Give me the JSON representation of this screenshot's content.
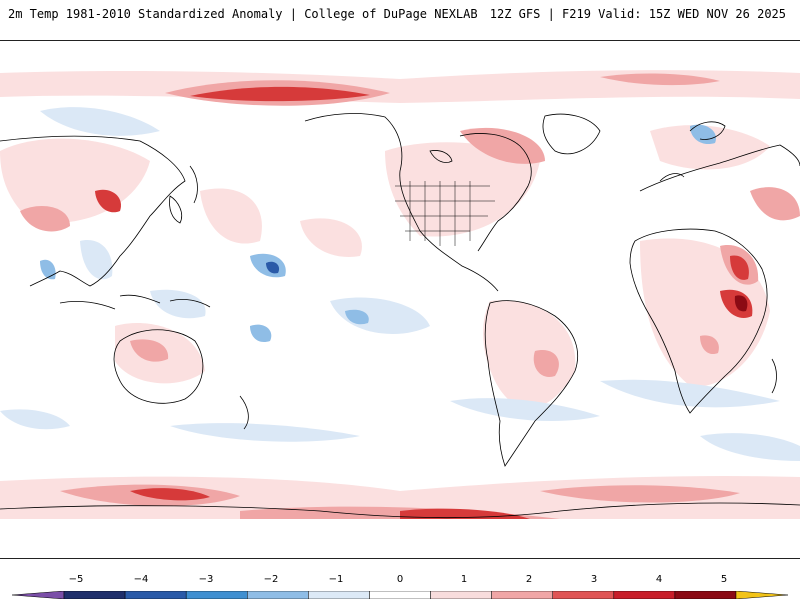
{
  "header": {
    "left_title": "2m Temp 1981-2010 Standardized Anomaly | College of DuPage NEXLAB",
    "right_title": "12Z GFS | F219 Valid: 15Z WED NOV 26 2025"
  },
  "map": {
    "projection": "global-equirectangular-pacific-centered",
    "field": "2m temperature standardized anomaly"
  },
  "colorbar": {
    "ticks": [
      "−5",
      "−4",
      "−3",
      "−2",
      "−1",
      "0",
      "1",
      "2",
      "3",
      "4",
      "5"
    ],
    "colors": [
      "#7b4fa8",
      "#1f2f6b",
      "#2a5aa8",
      "#3f8fd0",
      "#8fbde6",
      "#dce9f6",
      "#ffffff",
      "#f8dcdc",
      "#f0a6a6",
      "#e05555",
      "#c81e2a",
      "#8b0a14",
      "#f2c318"
    ]
  },
  "colors": {
    "land_outline": "#000000",
    "ocean": "#ffffff",
    "warm_light": "#fbe0e0",
    "warm_mid": "#f0a6a6",
    "warm_strong": "#d63a3a",
    "cold_light": "#dbe8f6",
    "cold_mid": "#8fbde6",
    "cold_strong": "#2a5aa8"
  }
}
